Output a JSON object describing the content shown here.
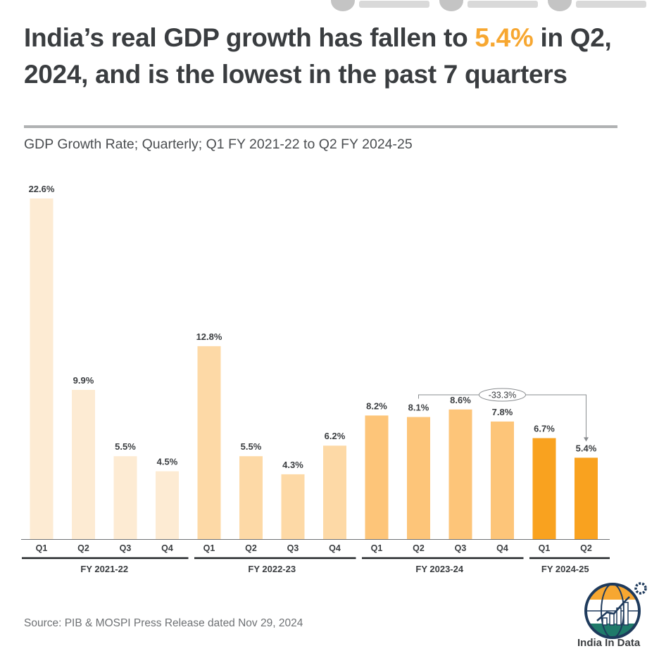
{
  "header": {
    "title_prefix": "India’s real GDP growth has fallen to ",
    "title_highlight": "5.4%",
    "title_suffix": " in Q2, 2024, and is the lowest in the past 7 quarters",
    "subtitle": "GDP Growth Rate; Quarterly; Q1 FY 2021-22 to Q2 FY 2024-25",
    "highlight_color": "#f7a731"
  },
  "social": [
    {
      "icon": "instagram-icon"
    },
    {
      "icon": "twitter-icon"
    },
    {
      "icon": "facebook-icon"
    }
  ],
  "chart_data": {
    "type": "bar",
    "title": "India’s real GDP growth has fallen to 5.4% in Q2, 2024, and is the lowest in the past 7 quarters",
    "subtitle": "GDP Growth Rate; Quarterly; Q1 FY 2021-22 to Q2 FY 2024-25",
    "xlabel": "",
    "ylabel": "",
    "ylim": [
      0,
      22.6
    ],
    "grid": false,
    "categories": [
      "Q1",
      "Q2",
      "Q3",
      "Q4",
      "Q1",
      "Q2",
      "Q3",
      "Q4",
      "Q1",
      "Q2",
      "Q3",
      "Q4",
      "Q1",
      "Q2"
    ],
    "values": [
      22.6,
      9.9,
      5.5,
      4.5,
      12.8,
      5.5,
      4.3,
      6.2,
      8.2,
      8.1,
      8.6,
      7.8,
      6.7,
      5.4
    ],
    "data_labels": [
      "22.6%",
      "9.9%",
      "5.5%",
      "4.5%",
      "12.8%",
      "5.5%",
      "4.3%",
      "6.2%",
      "8.2%",
      "8.1%",
      "8.6%",
      "7.8%",
      "6.7%",
      "5.4%"
    ],
    "groups": [
      {
        "label": "FY 2021-22",
        "start": 0,
        "end": 3,
        "color": "#fdebd3"
      },
      {
        "label": "FY 2022-23",
        "start": 4,
        "end": 7,
        "color": "#fdd9a6"
      },
      {
        "label": "FY 2023-24",
        "start": 8,
        "end": 11,
        "color": "#fdc579"
      },
      {
        "label": "FY 2024-25",
        "start": 12,
        "end": 13,
        "color": "#f9a21f"
      }
    ],
    "annotation": {
      "label": "-33.3%",
      "from_index": 9,
      "to_index": 13
    }
  },
  "footer": {
    "source": "Source: PIB & MOSPI Press Release dated Nov 29, 2024",
    "brand": "India In Data"
  }
}
